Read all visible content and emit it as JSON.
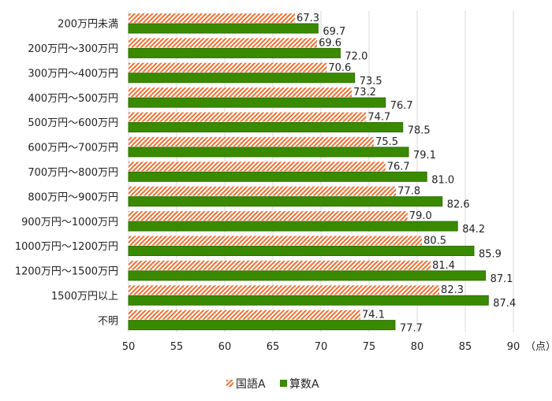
{
  "chart_data": {
    "type": "bar",
    "orientation": "horizontal",
    "categories": [
      "200万円未満",
      "200万円～300万円",
      "300万円～400万円",
      "400万円～500万円",
      "500万円～600万円",
      "600万円～700万円",
      "700万円～800万円",
      "800万円～900万円",
      "900万円～1000万円",
      "1000万円～1200万円",
      "1200万円～1500万円",
      "1500万円以上",
      "不明"
    ],
    "series": [
      {
        "name": "国語A",
        "color": "#f07030",
        "pattern": "diagonal-hatch",
        "values": [
          67.3,
          69.6,
          70.6,
          73.2,
          74.7,
          75.5,
          76.7,
          77.8,
          79.0,
          80.5,
          81.4,
          82.3,
          74.1
        ]
      },
      {
        "name": "算数A",
        "color": "#3a8a00",
        "pattern": "solid",
        "values": [
          69.7,
          72.0,
          73.5,
          76.7,
          78.5,
          79.1,
          81.0,
          82.6,
          84.2,
          85.9,
          87.1,
          87.4,
          77.7
        ]
      }
    ],
    "xlim": [
      50,
      90
    ],
    "xticks": [
      50,
      55,
      60,
      65,
      70,
      75,
      80,
      85,
      90
    ],
    "unit_label": "（点）",
    "grid": true,
    "legend": "bottom"
  }
}
